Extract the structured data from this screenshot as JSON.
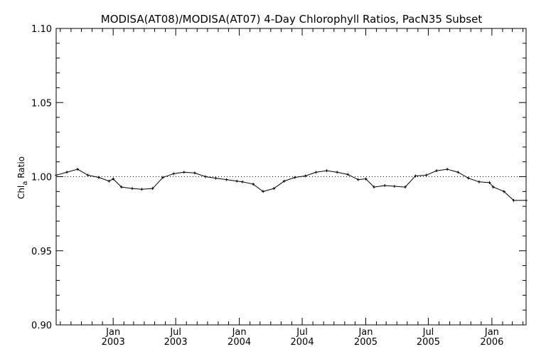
{
  "chart_data": {
    "type": "line",
    "title": "MODISA(AT08)/MODISA(AT07) 4-Day Chlorophyll Ratios, PacN35 Subset",
    "ylabel_main": "Chl",
    "ylabel_sub": "a",
    "ylabel_rest": " Ratio",
    "ylim": [
      0.9,
      1.1
    ],
    "y_ticks": [
      0.9,
      0.95,
      1.0,
      1.05,
      1.1
    ],
    "y_tick_labels": [
      "0.90",
      "0.95",
      "1.00",
      "1.05",
      "1.10"
    ],
    "xlim": [
      "2002-07-20",
      "2006-04-10"
    ],
    "x_ticks": [
      {
        "date": "2003-01-01",
        "month": "Jan",
        "year": "2003"
      },
      {
        "date": "2003-07-01",
        "month": "Jul",
        "year": "2003"
      },
      {
        "date": "2004-01-01",
        "month": "Jan",
        "year": "2004"
      },
      {
        "date": "2004-07-01",
        "month": "Jul",
        "year": "2004"
      },
      {
        "date": "2005-01-01",
        "month": "Jan",
        "year": "2005"
      },
      {
        "date": "2005-07-01",
        "month": "Jul",
        "year": "2005"
      },
      {
        "date": "2006-01-01",
        "month": "Jan",
        "year": "2006"
      }
    ],
    "reference_line": 1.0,
    "grid": false,
    "series": [
      {
        "x": [
          "2002-07-20",
          "2002-08-20",
          "2002-09-20",
          "2002-10-20",
          "2002-11-20",
          "2002-12-20",
          "2003-01-01",
          "2003-01-25",
          "2003-02-25",
          "2003-03-25",
          "2003-04-25",
          "2003-05-25",
          "2003-06-25",
          "2003-07-25",
          "2003-08-25",
          "2003-09-25",
          "2003-10-25",
          "2003-11-25",
          "2003-12-25",
          "2004-01-10",
          "2004-02-10",
          "2004-03-10",
          "2004-04-10",
          "2004-05-10",
          "2004-06-10",
          "2004-07-10",
          "2004-08-10",
          "2004-09-10",
          "2004-10-10",
          "2004-11-10",
          "2004-12-10",
          "2005-01-01",
          "2005-01-25",
          "2005-02-25",
          "2005-03-25",
          "2005-04-25",
          "2005-05-25",
          "2005-06-25",
          "2005-07-25",
          "2005-08-25",
          "2005-09-25",
          "2005-10-25",
          "2005-11-25",
          "2005-12-25",
          "2006-01-05",
          "2006-02-05",
          "2006-03-05",
          "2006-04-10"
        ],
        "y": [
          1.001,
          1.003,
          1.005,
          1.001,
          0.9995,
          0.997,
          0.9985,
          0.993,
          0.992,
          0.9915,
          0.992,
          0.9995,
          1.002,
          1.003,
          1.0025,
          1.0,
          0.999,
          0.998,
          0.997,
          0.9965,
          0.995,
          0.99,
          0.992,
          0.997,
          0.9995,
          1.0005,
          1.003,
          1.004,
          1.003,
          1.0015,
          0.998,
          0.9985,
          0.993,
          0.994,
          0.9935,
          0.993,
          1.0005,
          1.001,
          1.004,
          1.005,
          1.003,
          0.999,
          0.9965,
          0.996,
          0.993,
          0.99,
          0.984,
          0.984
        ]
      }
    ]
  }
}
